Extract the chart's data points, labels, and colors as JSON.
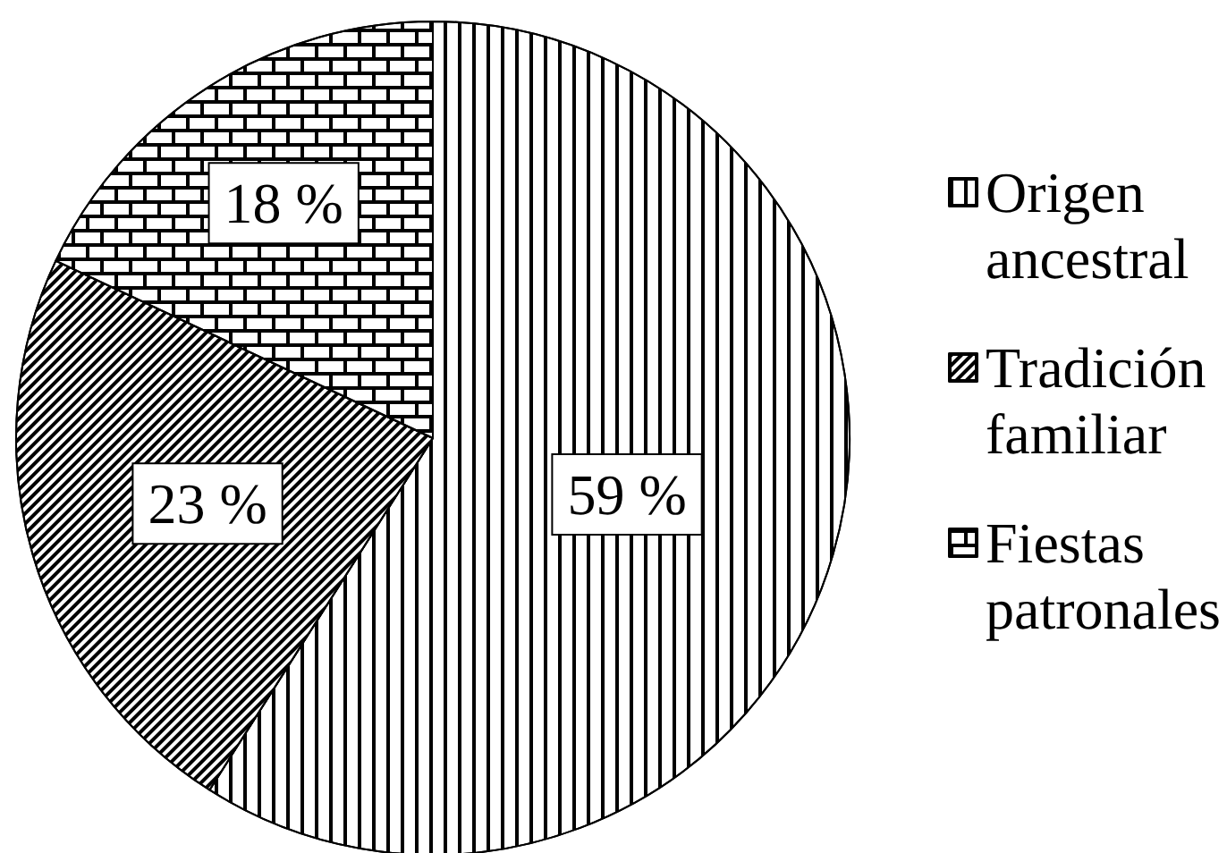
{
  "chart_data": {
    "type": "pie",
    "categories": [
      "Origen ancestral",
      "Tradición familiar",
      "Fiestas patronales"
    ],
    "values": [
      59,
      23,
      18
    ],
    "colors": [
      "#000000",
      "#000000",
      "#000000"
    ],
    "value_labels": [
      "59 %",
      "23 %",
      "18 %"
    ],
    "legend": "right"
  }
}
